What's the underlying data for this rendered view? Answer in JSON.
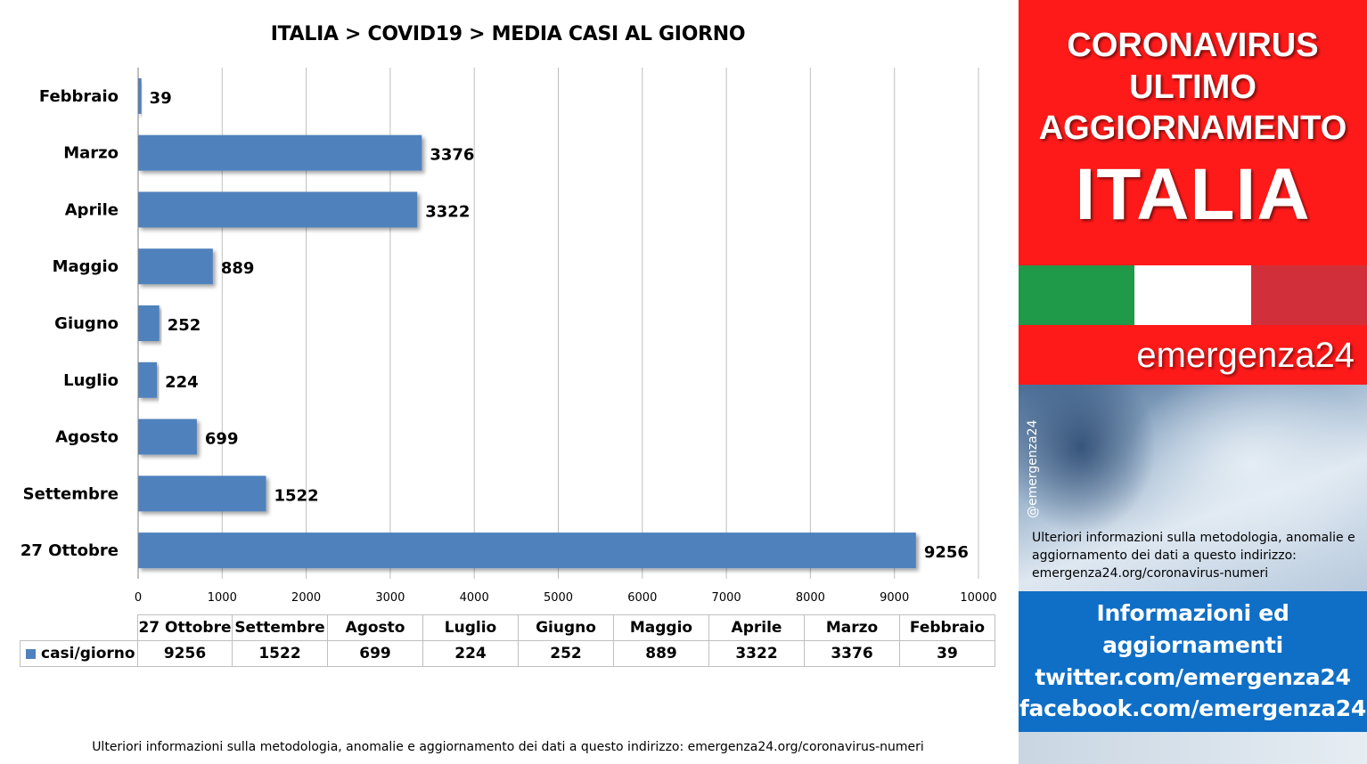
{
  "chart_data": {
    "type": "bar",
    "orientation": "horizontal",
    "title": "ITALIA >  COVID19 > MEDIA CASI AL GIORNO",
    "categories": [
      "Febbraio",
      "Marzo",
      "Aprile",
      "Maggio",
      "Giugno",
      "Luglio",
      "Agosto",
      "Settembre",
      "27 Ottobre"
    ],
    "series": [
      {
        "name": "casi/giorno",
        "values": [
          39,
          3376,
          3322,
          889,
          252,
          224,
          699,
          1522,
          9256
        ]
      }
    ],
    "xlim": [
      0,
      10000
    ],
    "xticks": [
      0,
      1000,
      2000,
      3000,
      4000,
      5000,
      6000,
      7000,
      8000,
      9000,
      10000
    ],
    "grid": true,
    "bar_color": "#4f81bd",
    "data_table": {
      "columns": [
        "27 Ottobre",
        "Settembre",
        "Agosto",
        "Luglio",
        "Giugno",
        "Maggio",
        "Aprile",
        "Marzo",
        "Febbraio"
      ],
      "row_label": "casi/giorno",
      "values": [
        "9256",
        "1522",
        "699",
        "224",
        "252",
        "889",
        "3322",
        "3376",
        "39"
      ]
    }
  },
  "footer": {
    "note": "Ulteriori informazioni sulla metodologia, anomalie e aggiornamento dei dati a questo indirizzo: emergenza24.org/coronavirus-numeri"
  },
  "side": {
    "heading_line1": "CORONAVIRUS",
    "heading_line2": "ULTIMO",
    "heading_line3": "AGGIORNAMENTO",
    "country": "ITALIA",
    "brand": "emergenza24",
    "handle": "@emergenza24",
    "photo_note": "Ulteriori informazioni sulla metodologia, anomalie e aggiornamento dei dati a questo indirizzo: emergenza24.org/coronavirus-numeri",
    "info_line1": "Informazioni ed",
    "info_line2": "aggiornamenti",
    "info_line3": "twitter.com/emergenza24",
    "info_line4": "facebook.com/emergenza24",
    "colors": {
      "red": "#ff1a1a",
      "blue": "#0f6fc6",
      "flag_green": "#1e9a48",
      "flag_white": "#ffffff",
      "flag_red": "#d1303a"
    }
  }
}
